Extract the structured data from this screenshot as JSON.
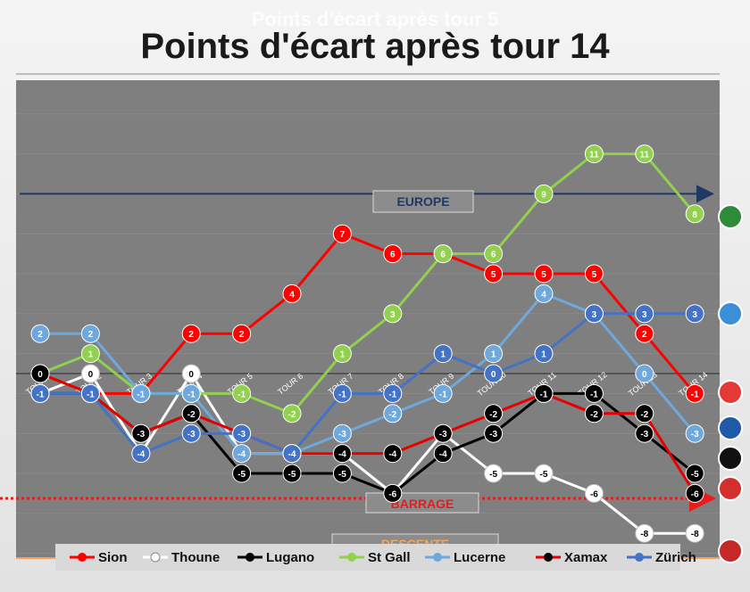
{
  "title_ghost": "Points d'écart après tour 5",
  "title": "Points d'écart après tour 14",
  "chart_data": {
    "type": "line",
    "title": "Points d'écart après tour 14",
    "categories": [
      "TOUR 1",
      "TOUR 2",
      "TOUR 3",
      "TOUR 4",
      "TOUR 5",
      "TOUR 6",
      "TOUR 7",
      "TOUR 8",
      "TOUR 9",
      "TOUR 10",
      "TOUR 11",
      "TOUR 12",
      "TOUR 13",
      "TOUR 14"
    ],
    "ylim": [
      -9,
      15
    ],
    "grid": true,
    "legend_position": "bottom",
    "zones": [
      {
        "label": "EUROPE",
        "value": 9,
        "color": "#1f3864"
      },
      {
        "label": "BARRAGE",
        "value": -6.25,
        "color": "#e81c1c"
      },
      {
        "label": "DESCENTE",
        "value": -9,
        "color": "#f4a460"
      }
    ],
    "series": [
      {
        "name": "Sion",
        "color": "#ff0000",
        "point_fill": "#ff0000",
        "label_color": "#ffffff",
        "values": [
          0,
          -1,
          -1,
          2,
          2,
          4,
          7,
          6,
          6,
          5,
          5,
          5,
          2,
          -1
        ]
      },
      {
        "name": "Thoune",
        "color": "#ffffff",
        "point_fill": "#ffffff",
        "label_color": "#000000",
        "values": [
          -1,
          0,
          -4,
          0,
          -4,
          -4,
          -4,
          -6,
          -3,
          -5,
          -5,
          -6,
          -8,
          -8
        ]
      },
      {
        "name": "Lugano",
        "color": "#000000",
        "point_fill": "#000000",
        "label_color": "#ffffff",
        "values": [
          -1,
          -1,
          -3,
          -2,
          -5,
          -5,
          -5,
          -6,
          -4,
          -3,
          -1,
          -1,
          -3,
          -5
        ]
      },
      {
        "name": "St Gall",
        "color": "#92d050",
        "point_fill": "#92d050",
        "label_color": "#ffffff",
        "values": [
          0,
          1,
          -1,
          -1,
          -1,
          -2,
          1,
          3,
          6,
          6,
          9,
          11,
          11,
          8
        ]
      },
      {
        "name": "Lucerne",
        "color": "#6fa8dc",
        "point_fill": "#6fa8dc",
        "label_color": "#ffffff",
        "values": [
          2,
          2,
          -1,
          -1,
          -4,
          -4,
          -3,
          -2,
          -1,
          1,
          4,
          3,
          0,
          -3
        ]
      },
      {
        "name": "Xamax",
        "color": "#e60000",
        "point_fill": "#000000",
        "label_color": "#ffffff",
        "values": [
          0,
          -1,
          -3,
          -2,
          -3,
          -4,
          -4,
          -4,
          -3,
          -2,
          -1,
          -2,
          -2,
          -6
        ]
      },
      {
        "name": "Zürich",
        "color": "#4472c4",
        "point_fill": "#4472c4",
        "label_color": "#ffffff",
        "values": [
          -1,
          -1,
          -4,
          -3,
          -3,
          -4,
          -1,
          -1,
          1,
          0,
          1,
          3,
          3,
          3
        ]
      }
    ]
  }
}
